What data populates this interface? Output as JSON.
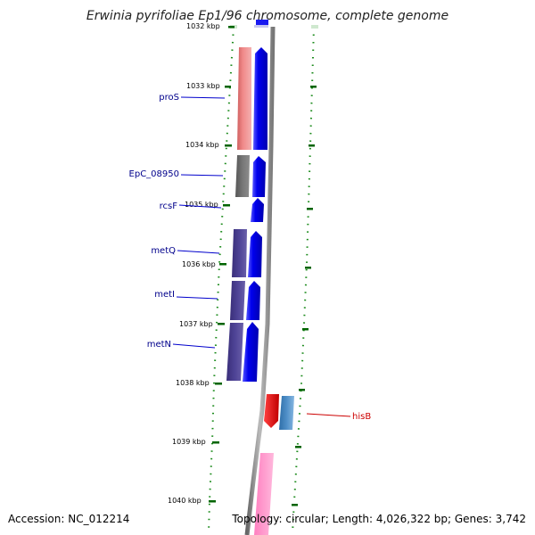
{
  "title": "Erwinia pyrifoliae Ep1/96 chromosome, complete genome",
  "footer": {
    "accession": "Accession: NC_012214",
    "stats": "Topology: circular; Length: 4,026,322 bp; Genes: 3,742"
  },
  "colors": {
    "backbone": "#8a8a8a",
    "cds_forward": "#0000ee",
    "feature_pros": "#f08080",
    "feature_epc08950": "#6e6e6e",
    "feature_methionine": "#4a3f8f",
    "hisb_cds": "#ee0000",
    "hisb_feature": "#4682b4",
    "downstream_feature": "#ff99cc",
    "tick": "#006400",
    "label_blue": "#00008b",
    "label_red": "#cc0000"
  },
  "ticks": [
    {
      "label": "1032 kbp"
    },
    {
      "label": "1033 kbp"
    },
    {
      "label": "1034 kbp"
    },
    {
      "label": "1035 kbp"
    },
    {
      "label": "1036 kbp"
    },
    {
      "label": "1037 kbp"
    },
    {
      "label": "1038 kbp"
    },
    {
      "label": "1039 kbp"
    },
    {
      "label": "1040 kbp"
    }
  ],
  "genes": [
    {
      "name": "proS"
    },
    {
      "name": "EpC_08950"
    },
    {
      "name": "rcsF"
    },
    {
      "name": "metQ"
    },
    {
      "name": "metI"
    },
    {
      "name": "metN"
    },
    {
      "name": "hisB"
    }
  ]
}
